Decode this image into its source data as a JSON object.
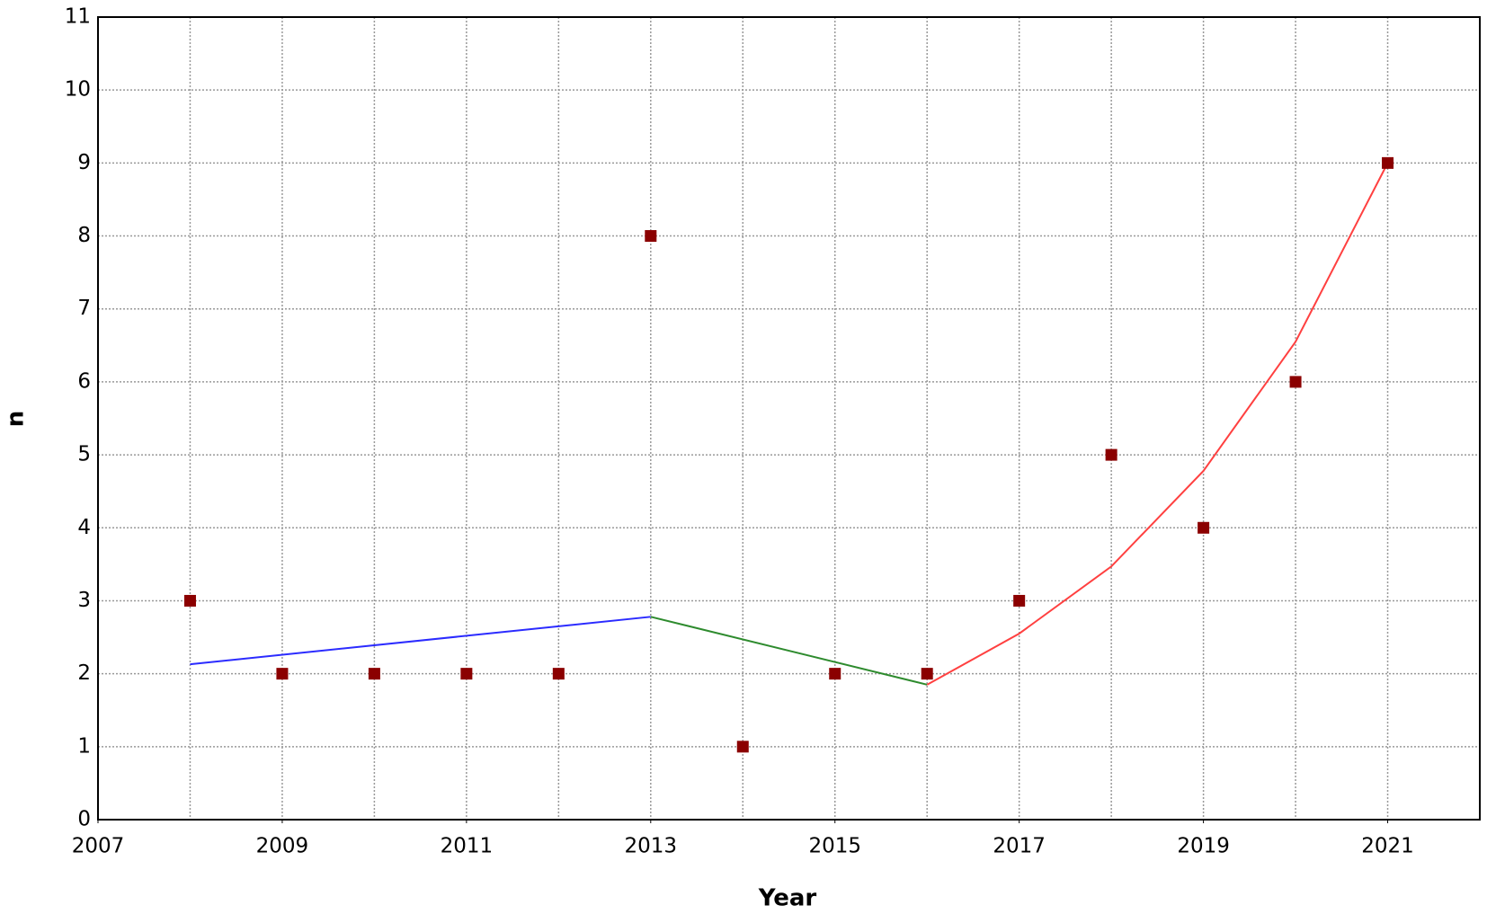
{
  "chart_data": {
    "type": "scatter",
    "x_label": "Year",
    "y_label": "n",
    "xlim": [
      2007,
      2022
    ],
    "xticks": [
      2007,
      2009,
      2011,
      2013,
      2015,
      2017,
      2019,
      2021
    ],
    "x_grid_lines": [
      2008,
      2009,
      2010,
      2011,
      2012,
      2013,
      2014,
      2015,
      2016,
      2017,
      2018,
      2019,
      2020,
      2021
    ],
    "ylim": [
      0,
      11
    ],
    "yticks": [
      0,
      1,
      2,
      3,
      4,
      5,
      6,
      7,
      8,
      9,
      10,
      11
    ],
    "grid": true,
    "series": [
      {
        "mode": "markers",
        "marker": "square",
        "color": "#8b0000",
        "x": [
          2008,
          2009,
          2010,
          2011,
          2012,
          2013,
          2014,
          2015,
          2016,
          2017,
          2018,
          2019,
          2020,
          2021
        ],
        "values": [
          3,
          2,
          2,
          2,
          2,
          8,
          1,
          2,
          2,
          3,
          5,
          4,
          6,
          9
        ]
      },
      {
        "mode": "line",
        "color": "#2b2bff",
        "x": [
          2008,
          2013
        ],
        "values": [
          2.13,
          2.78
        ]
      },
      {
        "mode": "line",
        "color": "#2e8b2e",
        "x": [
          2013,
          2016
        ],
        "values": [
          2.78,
          1.85
        ]
      },
      {
        "mode": "line",
        "color": "#ff4040",
        "x": [
          2016,
          2017,
          2018,
          2019,
          2020,
          2021
        ],
        "values": [
          1.85,
          2.55,
          3.47,
          4.78,
          6.55,
          9.0
        ]
      }
    ]
  }
}
